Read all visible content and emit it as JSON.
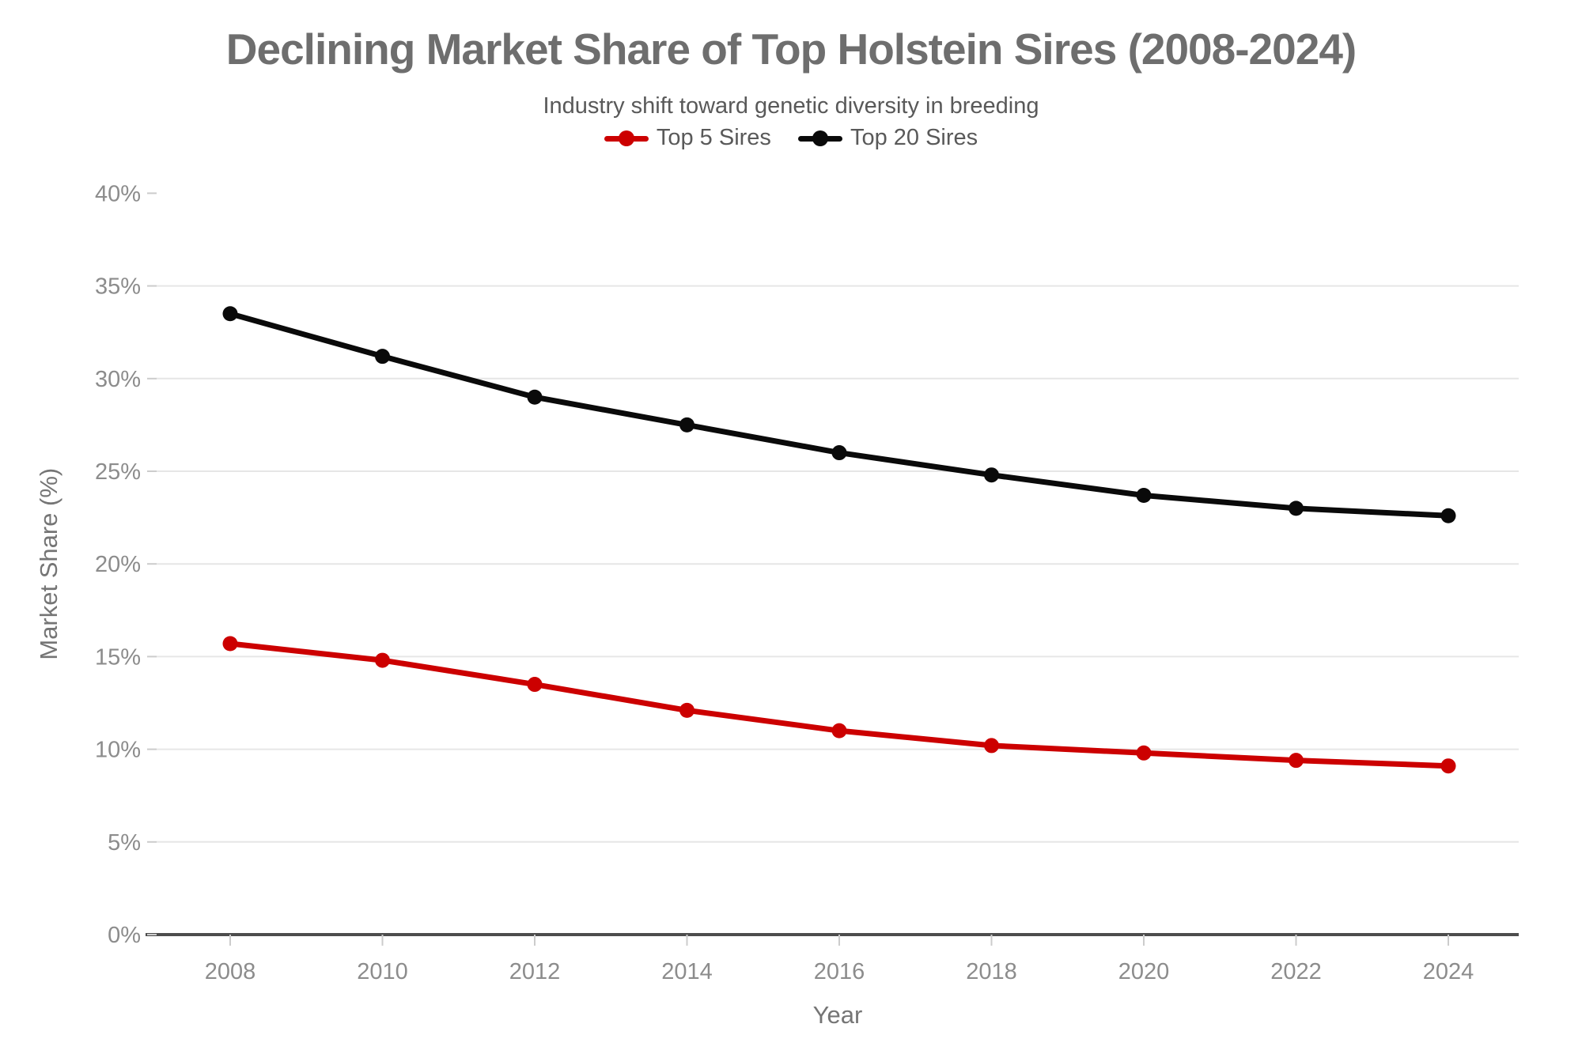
{
  "chart_data": {
    "type": "line",
    "title": "Declining Market Share of Top Holstein Sires (2008-2024)",
    "subtitle": "Industry shift toward genetic diversity in breeding",
    "xlabel": "Year",
    "ylabel": "Market Share (%)",
    "x": [
      2008,
      2010,
      2012,
      2014,
      2016,
      2018,
      2020,
      2022,
      2024
    ],
    "series": [
      {
        "name": "Top 5 Sires",
        "color": "#cc0000",
        "values": [
          15.7,
          14.8,
          13.5,
          12.1,
          11.0,
          10.2,
          9.8,
          9.4,
          9.1
        ]
      },
      {
        "name": "Top 20 Sires",
        "color": "#0a0a0a",
        "values": [
          33.5,
          31.2,
          29.0,
          27.5,
          26.0,
          24.8,
          23.7,
          23.0,
          22.6
        ]
      }
    ],
    "ylim": [
      0,
      40
    ],
    "ytick_step": 5,
    "ytick_suffix": "%",
    "grid": true,
    "legend_position": "top-center",
    "colors": {
      "background": "#ffffff",
      "grid": "#e6e6e6",
      "axis_line": "#4d4d4d",
      "tick_mark": "#cccccc",
      "tick_label": "#8c8c8c",
      "axis_label": "#757575",
      "title": "#6e6e6e",
      "subtitle": "#595959"
    }
  }
}
